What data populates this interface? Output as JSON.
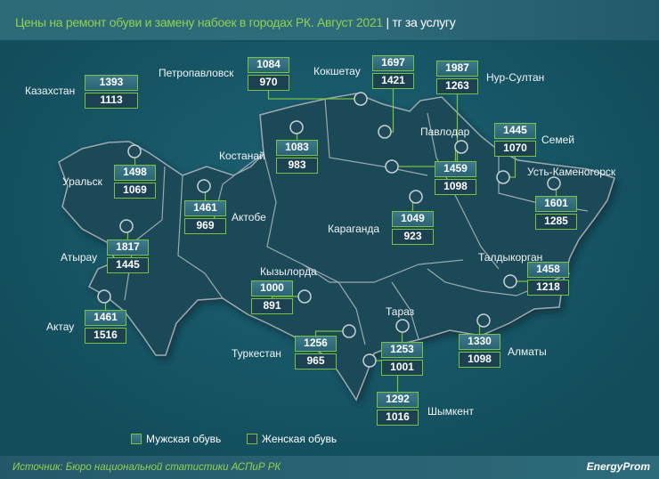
{
  "header": {
    "title": "Цены на ремонт обуви и замену набоек в городах РК. Август 2021",
    "separator": "|",
    "unit": "тг за услугу"
  },
  "cities": [
    {
      "name": "Казахстан",
      "men": 1393,
      "women": 1113
    },
    {
      "name": "Петропавловск",
      "men": 1084,
      "women": 970
    },
    {
      "name": "Кокшетау",
      "men": 1697,
      "women": 1421
    },
    {
      "name": "Нур-Султан",
      "men": 1987,
      "women": 1263
    },
    {
      "name": "Костанай",
      "men": 1083,
      "women": 983
    },
    {
      "name": "Уральск",
      "men": 1498,
      "women": 1069
    },
    {
      "name": "Актобе",
      "men": 1461,
      "women": 969
    },
    {
      "name": "Атырау",
      "men": 1817,
      "women": 1445
    },
    {
      "name": "Павлодар",
      "men": 1459,
      "women": 1098
    },
    {
      "name": "Семей",
      "men": 1445,
      "women": 1070
    },
    {
      "name": "Усть-Каменогорск",
      "men": 1601,
      "women": 1285
    },
    {
      "name": "Караганда",
      "men": 1049,
      "women": 923
    },
    {
      "name": "Талдыкорган",
      "men": 1458,
      "women": 1218
    },
    {
      "name": "Кызылорда",
      "men": 1000,
      "women": 891
    },
    {
      "name": "Актау",
      "men": 1461,
      "women": 1516
    },
    {
      "name": "Туркестан",
      "men": 1256,
      "women": 965
    },
    {
      "name": "Тараз",
      "men": 1253,
      "women": 1001
    },
    {
      "name": "Алматы",
      "men": 1330,
      "women": 1098
    },
    {
      "name": "Шымкент",
      "men": 1292,
      "women": 1016
    }
  ],
  "legend": {
    "men": "Мужская обувь",
    "women": "Женская обувь"
  },
  "footer": {
    "source": "Источник: Бюро национальной статистики АСПиР РК",
    "logo": "EnergyProm"
  },
  "colors": {
    "accent": "#7ac143",
    "background": "#165566",
    "men_box": "#2f6b7a",
    "women_box": "#1c4150"
  }
}
